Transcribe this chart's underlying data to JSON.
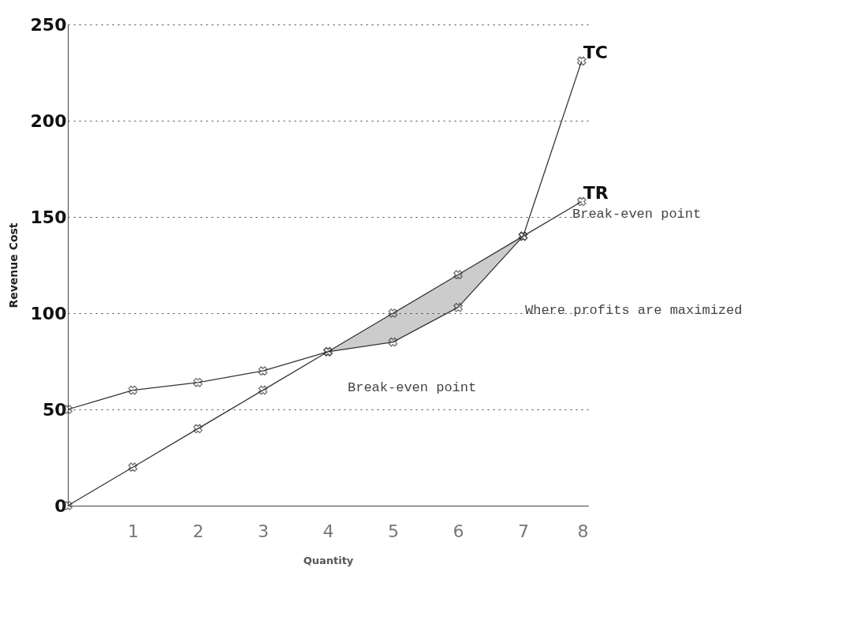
{
  "chart_data": {
    "type": "line",
    "xlabel": "Quantity",
    "ylabel": "Revenue Cost",
    "x": [
      0,
      1,
      2,
      3,
      4,
      5,
      6,
      7,
      7.9
    ],
    "series": [
      {
        "name": "TC",
        "color": "#333333",
        "values": [
          50,
          60,
          64,
          70,
          80,
          85,
          103,
          140,
          231
        ]
      },
      {
        "name": "TR",
        "color": "#333333",
        "values": [
          0,
          20,
          40,
          60,
          80,
          100,
          120,
          140,
          158
        ],
        "lower": [
          null,
          null,
          null,
          null,
          80,
          85,
          103,
          140,
          null
        ],
        "upper": [
          null,
          null,
          null,
          null,
          80,
          100,
          120,
          140,
          null
        ]
      }
    ],
    "annotations": [
      "Break-even point",
      "Break-even point",
      "Where profits are maximized"
    ],
    "xlim": [
      0,
      8
    ],
    "ylim": [
      0,
      250
    ],
    "xticks": [
      1,
      2,
      3,
      4,
      5,
      6,
      7,
      8
    ],
    "yticks": [
      0,
      50,
      100,
      150,
      200,
      250
    ],
    "grid": "y",
    "marker": "cross",
    "legend": false,
    "line_style": "solid"
  }
}
